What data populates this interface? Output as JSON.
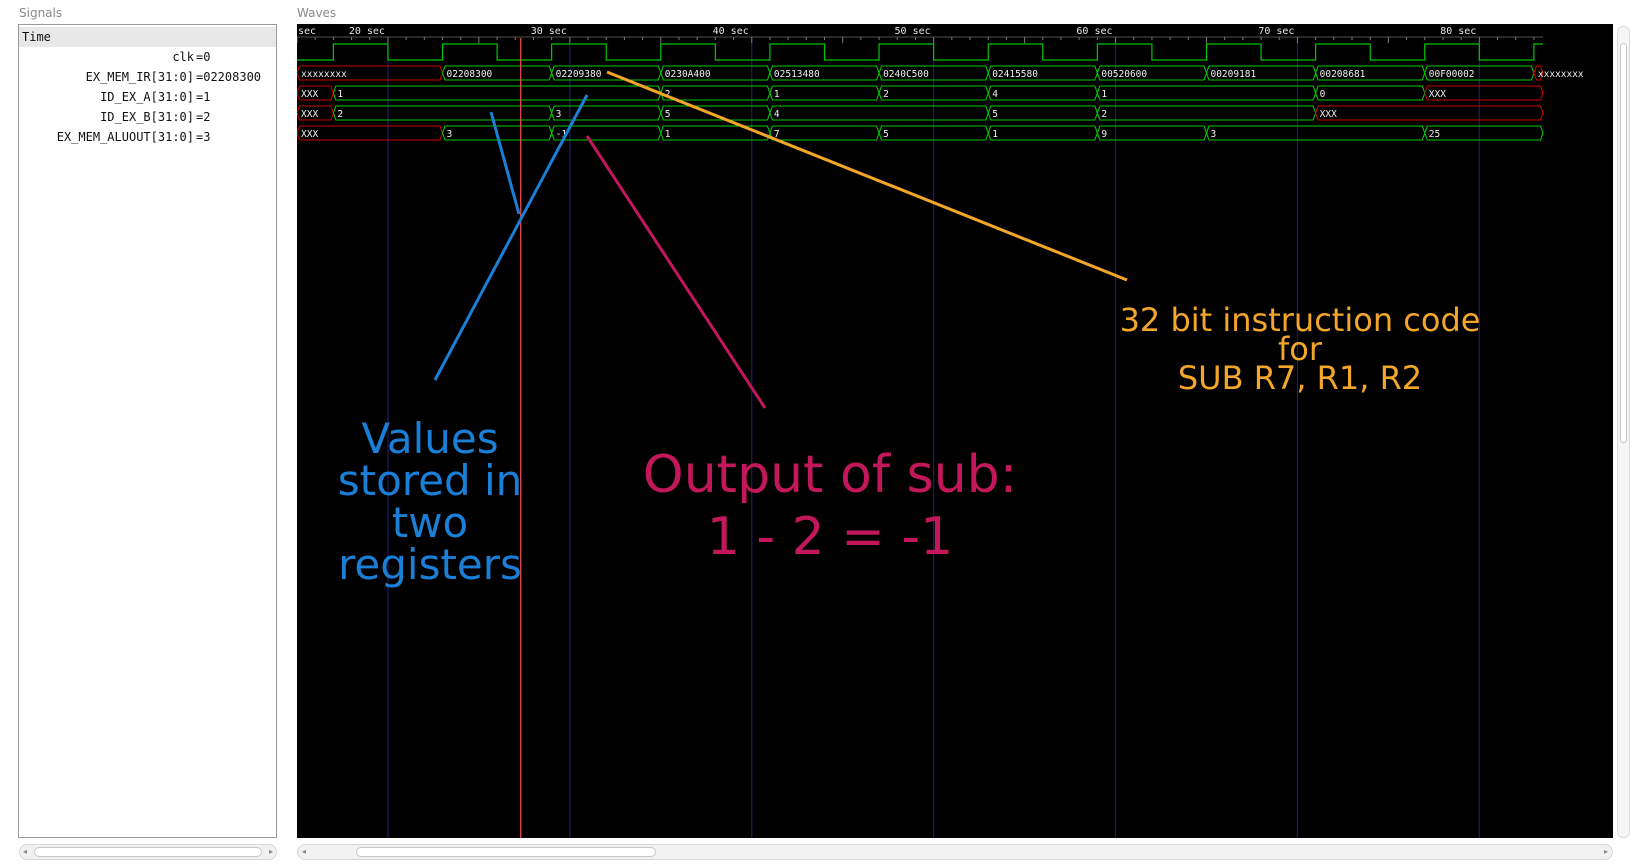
{
  "panes": {
    "signals_label": "Signals",
    "waves_label": "Waves"
  },
  "signals": {
    "time_label": "Time",
    "rows": [
      {
        "name": "clk",
        "value": "=0"
      },
      {
        "name": "EX_MEM_IR[31:0]",
        "value": "=02208300"
      },
      {
        "name": "ID_EX_A[31:0]",
        "value": "=1"
      },
      {
        "name": "ID_EX_B[31:0]",
        "value": "=2"
      },
      {
        "name": "EX_MEM_ALUOUT[31:0]",
        "value": "=3"
      }
    ]
  },
  "waves": {
    "time_range_sec": [
      15,
      83.5
    ],
    "ticks": [
      {
        "t": 15,
        "label": "sec"
      },
      {
        "t": 20,
        "label": "20 sec"
      },
      {
        "t": 30,
        "label": "30 sec"
      },
      {
        "t": 40,
        "label": "40 sec"
      },
      {
        "t": 50,
        "label": "50 sec"
      },
      {
        "t": 60,
        "label": "60 sec"
      },
      {
        "t": 70,
        "label": "70 sec"
      },
      {
        "t": 80,
        "label": "80 sec"
      }
    ],
    "cursor_sec": 27.3,
    "clock": {
      "start": 15,
      "period": 6,
      "first_rise": 17,
      "high_width": 3,
      "end": 83.5
    },
    "buses": [
      {
        "name": "EX_MEM_IR",
        "segments": [
          {
            "from": 15,
            "to": 23,
            "value": "xxxxxxxx",
            "unknown": true
          },
          {
            "from": 23,
            "to": 29,
            "value": "02208300"
          },
          {
            "from": 29,
            "to": 35,
            "value": "02209380"
          },
          {
            "from": 35,
            "to": 41,
            "value": "0230A400"
          },
          {
            "from": 41,
            "to": 47,
            "value": "02513480"
          },
          {
            "from": 47,
            "to": 53,
            "value": "0240C500"
          },
          {
            "from": 53,
            "to": 59,
            "value": "02415580"
          },
          {
            "from": 59,
            "to": 65,
            "value": "00520600"
          },
          {
            "from": 65,
            "to": 71,
            "value": "00209181"
          },
          {
            "from": 71,
            "to": 77,
            "value": "00208681"
          },
          {
            "from": 77,
            "to": 83,
            "value": "00F00002"
          },
          {
            "from": 83,
            "to": 83.5,
            "value": "xxxxxxxx",
            "unknown": true
          }
        ]
      },
      {
        "name": "ID_EX_A",
        "segments": [
          {
            "from": 15,
            "to": 17,
            "value": "XXX",
            "unknown": true
          },
          {
            "from": 17,
            "to": 35,
            "value": "1"
          },
          {
            "from": 35,
            "to": 41,
            "value": "2"
          },
          {
            "from": 41,
            "to": 47,
            "value": "1"
          },
          {
            "from": 47,
            "to": 53,
            "value": "2"
          },
          {
            "from": 53,
            "to": 59,
            "value": "4"
          },
          {
            "from": 59,
            "to": 71,
            "value": "1"
          },
          {
            "from": 71,
            "to": 77,
            "value": "0"
          },
          {
            "from": 77,
            "to": 83.5,
            "value": "XXX",
            "unknown": true
          }
        ]
      },
      {
        "name": "ID_EX_B",
        "segments": [
          {
            "from": 15,
            "to": 17,
            "value": "XXX",
            "unknown": true
          },
          {
            "from": 17,
            "to": 29,
            "value": "2"
          },
          {
            "from": 29,
            "to": 35,
            "value": "3"
          },
          {
            "from": 35,
            "to": 41,
            "value": "5"
          },
          {
            "from": 41,
            "to": 53,
            "value": "4"
          },
          {
            "from": 53,
            "to": 59,
            "value": "5"
          },
          {
            "from": 59,
            "to": 71,
            "value": "2"
          },
          {
            "from": 71,
            "to": 83.5,
            "value": "XXX",
            "unknown": true
          }
        ]
      },
      {
        "name": "EX_MEM_ALUOUT",
        "segments": [
          {
            "from": 15,
            "to": 23,
            "value": "XXX",
            "unknown": true
          },
          {
            "from": 23,
            "to": 29,
            "value": "3"
          },
          {
            "from": 29,
            "to": 35,
            "value": "-1"
          },
          {
            "from": 35,
            "to": 41,
            "value": "1"
          },
          {
            "from": 41,
            "to": 47,
            "value": "7"
          },
          {
            "from": 47,
            "to": 53,
            "value": "5"
          },
          {
            "from": 53,
            "to": 59,
            "value": "1"
          },
          {
            "from": 59,
            "to": 65,
            "value": "9"
          },
          {
            "from": 65,
            "to": 77,
            "value": "3"
          },
          {
            "from": 77,
            "to": 83.5,
            "value": "25"
          }
        ]
      }
    ]
  },
  "annotations": {
    "blue_lines": [
      "Values",
      "stored in",
      "two",
      "registers"
    ],
    "red_lines": [
      "Output of sub:",
      "1 - 2 = -1"
    ],
    "orange_lines": [
      "32 bit instruction code",
      "for",
      "SUB R7, R1, R2"
    ]
  },
  "colors": {
    "wave_green": "#00c800",
    "unknown_red": "#c80000",
    "cursor": "#ff5050",
    "grid_blue": "#1c1c6a",
    "annot_blue": "#1a7fd6",
    "annot_red": "#c2185b",
    "annot_orange": "#f4a62a"
  }
}
